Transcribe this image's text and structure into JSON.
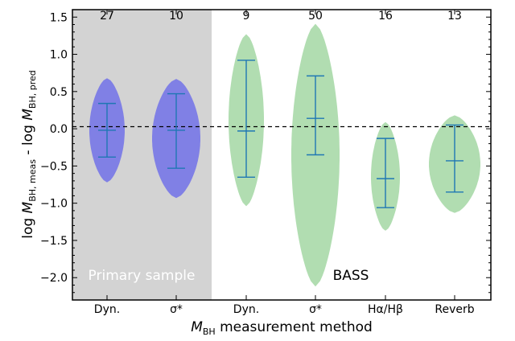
{
  "chart_data": {
    "type": "violin",
    "xlabel": "M_BH measurement method",
    "ylabel": "log M_BH,meas - log M_BH,pred",
    "ylim": [
      -2.3,
      1.6
    ],
    "yticks": [
      1.5,
      1.0,
      0.5,
      0.0,
      -0.5,
      -1.0,
      -1.5,
      -2.0
    ],
    "yticklabels": [
      "1.5",
      "1.0",
      "0.5",
      "0.0",
      "−0.5",
      "−1.0",
      "−1.5",
      "−2.0"
    ],
    "reference_line": 0.0,
    "regions": [
      {
        "label": "Primary sample",
        "categories": [
          0,
          1
        ],
        "background": "#d3d3d3"
      },
      {
        "label": "BASS",
        "categories": [
          2,
          3,
          4,
          5
        ],
        "background": "#ffffff"
      }
    ],
    "categories": [
      "Dyn.",
      "σ*",
      "Dyn.",
      "σ*",
      "Hα/Hβ",
      "Reverb"
    ],
    "counts": [
      27,
      10,
      9,
      50,
      16,
      13
    ],
    "colors": {
      "primary": "#7b7be6",
      "bass": "#a8d9a8",
      "whisker": "#1f77b4"
    },
    "violins": [
      {
        "group": "primary",
        "min": -0.38,
        "median": -0.02,
        "max": 0.34,
        "extent": [
          -0.72,
          0.68
        ]
      },
      {
        "group": "primary",
        "min": -0.53,
        "median": -0.02,
        "max": 0.47,
        "extent": [
          -0.93,
          0.67
        ]
      },
      {
        "group": "bass",
        "min": -0.65,
        "median": -0.03,
        "max": 0.92,
        "extent": [
          -1.04,
          1.27
        ]
      },
      {
        "group": "bass",
        "min": -0.35,
        "median": 0.14,
        "max": 0.71,
        "extent": [
          -2.12,
          1.41
        ]
      },
      {
        "group": "bass",
        "min": -1.06,
        "median": -0.67,
        "max": -0.13,
        "extent": [
          -1.37,
          0.09
        ]
      },
      {
        "group": "bass",
        "min": -0.85,
        "median": -0.43,
        "max": 0.05,
        "extent": [
          -1.13,
          0.18
        ]
      }
    ]
  }
}
